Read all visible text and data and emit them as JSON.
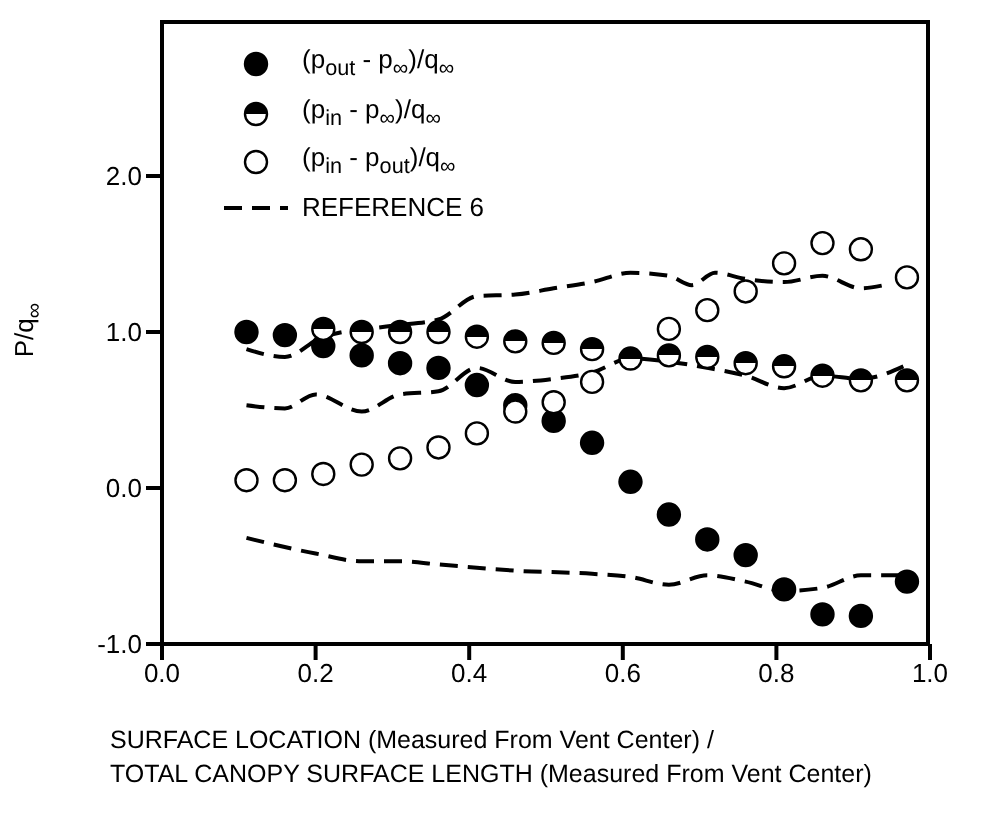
{
  "chart_data": {
    "type": "scatter",
    "xlabel": "SURFACE LOCATION (Measured From Vent Center) /\nTOTAL CANOPY SURFACE LENGTH (Measured From Vent Center)",
    "ylabel": "P/q$_{∞}$",
    "xlim": [
      0,
      1
    ],
    "ylim": [
      -1,
      3
    ],
    "xticks": [
      {
        "value": 0,
        "label": "0.0"
      },
      {
        "value": 0.2,
        "label": "0.2"
      },
      {
        "value": 0.4,
        "label": "0.4"
      },
      {
        "value": 0.6,
        "label": "0.6"
      },
      {
        "value": 0.8,
        "label": "0.8"
      },
      {
        "value": 1,
        "label": "1.0"
      }
    ],
    "yticks": [
      {
        "value": -1,
        "label": "-1.0"
      },
      {
        "value": 0,
        "label": "0.0"
      },
      {
        "value": 1,
        "label": "1.0"
      },
      {
        "value": 2,
        "label": "2.0"
      }
    ],
    "grid": false,
    "legend": "top left",
    "series": [
      {
        "name": "(p$_{out}$ - p$_{∞}$)/q$_{∞}$",
        "color": "#000000",
        "marker": "circle",
        "x": [
          0.11,
          0.16,
          0.21,
          0.26,
          0.31,
          0.36,
          0.41,
          0.46,
          0.51,
          0.56,
          0.61,
          0.66,
          0.71,
          0.76,
          0.81,
          0.86,
          0.91,
          0.97
        ],
        "values": [
          1.0,
          0.98,
          0.91,
          0.85,
          0.8,
          0.77,
          0.66,
          0.53,
          0.43,
          0.29,
          0.04,
          -0.17,
          -0.33,
          -0.43,
          -0.65,
          -0.81,
          -0.82,
          -0.6
        ]
      },
      {
        "name": "(p$_{in}$ - p$_{∞}$)/q$_{∞}$",
        "color": "#000000",
        "marker": "circle",
        "x": [
          0.21,
          0.26,
          0.31,
          0.36,
          0.41,
          0.46,
          0.51,
          0.56,
          0.61,
          0.66,
          0.71,
          0.76,
          0.81,
          0.86,
          0.91,
          0.97
        ],
        "values": [
          1.02,
          1.0,
          1.0,
          1.0,
          0.97,
          0.94,
          0.93,
          0.89,
          0.83,
          0.85,
          0.84,
          0.8,
          0.78,
          0.72,
          0.69,
          0.69
        ]
      },
      {
        "name": "(p$_{in}$ - p$_{out}$)/q$_{∞}$",
        "color": "#000000",
        "marker": "circle",
        "x": [
          0.11,
          0.16,
          0.21,
          0.26,
          0.31,
          0.36,
          0.41,
          0.46,
          0.51,
          0.56,
          0.66,
          0.71,
          0.76,
          0.81,
          0.86,
          0.91,
          0.97
        ],
        "values": [
          0.05,
          0.05,
          0.09,
          0.15,
          0.19,
          0.26,
          0.35,
          0.49,
          0.55,
          0.68,
          1.02,
          1.14,
          1.26,
          1.44,
          1.57,
          1.53,
          1.35
        ]
      },
      {
        "type": "line",
        "name": "REFERENCE 6",
        "color": "#000000",
        "line_style": "dashed",
        "x": [
          0.11,
          0.16,
          0.21,
          0.3,
          0.36,
          0.41,
          0.46,
          0.51,
          0.56,
          0.61,
          0.66,
          0.69,
          0.72,
          0.76,
          0.81,
          0.86,
          0.91,
          0.94
        ],
        "values": [
          0.89,
          0.84,
          0.97,
          1.04,
          1.08,
          1.23,
          1.24,
          1.28,
          1.32,
          1.38,
          1.36,
          1.3,
          1.38,
          1.34,
          1.32,
          1.36,
          1.28,
          1.3
        ]
      },
      {
        "type": "line",
        "color": "#000000",
        "line_style": "dashed",
        "x": [
          0.11,
          0.16,
          0.2,
          0.26,
          0.31,
          0.36,
          0.41,
          0.46,
          0.51,
          0.56,
          0.61,
          0.66,
          0.71,
          0.76,
          0.81,
          0.86,
          0.91,
          0.97
        ],
        "values": [
          0.53,
          0.51,
          0.6,
          0.49,
          0.6,
          0.62,
          0.77,
          0.68,
          0.7,
          0.74,
          0.83,
          0.81,
          0.77,
          0.72,
          0.64,
          0.72,
          0.7,
          0.79
        ]
      },
      {
        "type": "line",
        "color": "#000000",
        "line_style": "dashed",
        "x": [
          0.11,
          0.2,
          0.26,
          0.31,
          0.36,
          0.46,
          0.56,
          0.61,
          0.66,
          0.71,
          0.76,
          0.81,
          0.86,
          0.91,
          0.97
        ],
        "values": [
          -0.32,
          -0.42,
          -0.47,
          -0.47,
          -0.49,
          -0.53,
          -0.55,
          -0.57,
          -0.62,
          -0.56,
          -0.6,
          -0.66,
          -0.64,
          -0.56,
          -0.56
        ]
      }
    ]
  }
}
